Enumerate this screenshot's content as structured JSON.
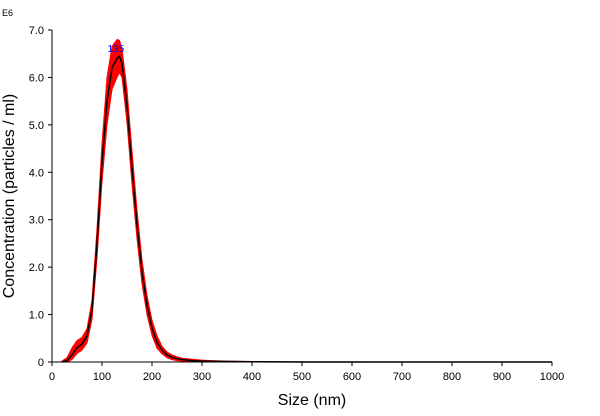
{
  "chart_data": {
    "type": "line",
    "title": "",
    "xlabel": "Size (nm)",
    "ylabel": "Concentration (particles / ml)",
    "y_exponent_label": "E6",
    "xlim": [
      0,
      1000
    ],
    "ylim": [
      0,
      7.0
    ],
    "x_ticks": [
      0,
      100,
      200,
      300,
      400,
      500,
      600,
      700,
      800,
      900,
      1000
    ],
    "x_tick_labels": [
      "0",
      "100",
      "200",
      "300",
      "400",
      "500",
      "600",
      "700",
      "800",
      "900",
      "1000"
    ],
    "y_ticks": [
      0,
      1,
      2,
      3,
      4,
      5,
      6,
      7
    ],
    "y_tick_labels": [
      "0",
      "1.0",
      "2.0",
      "3.0",
      "4.0",
      "5.0",
      "6.0",
      "7.0"
    ],
    "grid": false,
    "legend": "none",
    "peak_annotation": {
      "x": 135,
      "y": 6.45,
      "text": "135"
    },
    "series": [
      {
        "x": [
          20,
          30,
          40,
          50,
          60,
          70,
          80,
          90,
          100,
          110,
          120,
          130,
          135,
          140,
          150,
          160,
          170,
          180,
          190,
          200,
          210,
          220,
          230,
          240,
          250,
          260,
          280,
          300,
          320,
          350,
          400,
          450,
          500,
          600,
          700,
          800,
          900,
          1000
        ],
        "y": [
          0,
          0.03,
          0.15,
          0.3,
          0.38,
          0.55,
          1.1,
          2.5,
          4.2,
          5.5,
          6.2,
          6.4,
          6.45,
          6.3,
          5.4,
          4.1,
          2.9,
          1.9,
          1.2,
          0.72,
          0.42,
          0.25,
          0.15,
          0.1,
          0.07,
          0.05,
          0.03,
          0.02,
          0.015,
          0.01,
          0.005,
          0.002,
          0.001,
          0,
          0,
          0,
          0,
          0
        ],
        "upper": [
          0.02,
          0.09,
          0.3,
          0.45,
          0.52,
          0.7,
          1.3,
          2.8,
          4.6,
          6.0,
          6.65,
          6.8,
          6.78,
          6.6,
          5.75,
          4.45,
          3.2,
          2.15,
          1.4,
          0.88,
          0.55,
          0.33,
          0.21,
          0.15,
          0.11,
          0.08,
          0.06,
          0.04,
          0.03,
          0.02,
          0.01,
          0.005,
          0.003,
          0.002,
          0.001,
          0.001,
          0.001,
          0.001
        ],
        "lower": [
          0,
          0,
          0.05,
          0.18,
          0.25,
          0.4,
          0.9,
          2.2,
          3.8,
          5.0,
          5.75,
          6.0,
          6.1,
          6.0,
          5.05,
          3.75,
          2.6,
          1.65,
          1.0,
          0.56,
          0.29,
          0.17,
          0.09,
          0.05,
          0.03,
          0.02,
          0.01,
          0.005,
          0,
          0,
          0,
          0,
          0,
          0,
          0,
          0,
          0,
          0
        ],
        "line_color": "#000000",
        "band_color": "#ff0000"
      }
    ],
    "colors": {
      "axis": "#000000",
      "line": "#000000",
      "error_band": "#ff0000",
      "annotation": "#0000ff"
    }
  }
}
